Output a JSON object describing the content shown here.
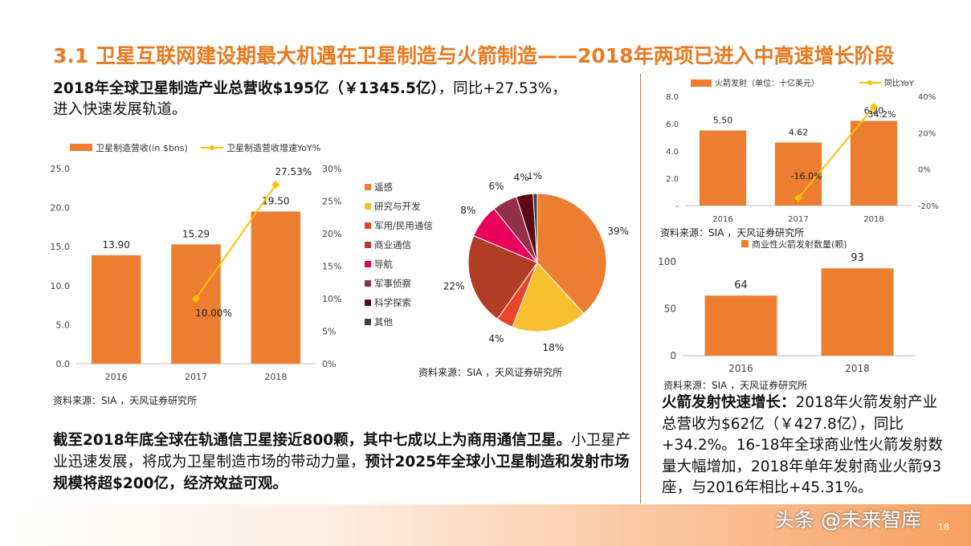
{
  "title": "3.1 卫星互联网建设期最大机遇在卫星制造与火箭制造——2018年两项已进入中高速增长阶段",
  "headline": {
    "bold": "2018年全球卫星制造产业总营收$195亿（￥1345.5亿）",
    "rest1": "，同比+27.53%，",
    "rest2": "进入快速发展轨道。"
  },
  "source_text": "资料来源：SIA ，天风证券研究所",
  "paragraph": {
    "bold1": "截至2018年底全球在轨通信卫星接近800颗，其中七成以上为商用通信卫星。",
    "normal": "小卫星产业迅速发展，将成为卫星制造市场的带动力量，",
    "bold2": "预计2025年全球小卫星制造和发射市场规模将超$200亿，经济效益可观。"
  },
  "right_text": {
    "bold": "火箭发射快速增长：",
    "normal": "2018年火箭发射产业总营收为$62亿（￥427.8亿），同比+34.2%。16-18年全球商业性火箭发射数量大幅增加，2018年单年发射商业火箭93座，与2016年相比+45.31%。"
  },
  "watermark": "头条 @未来智库",
  "page_number": "18",
  "colors": {
    "orange": "#ed7d31",
    "yellow": "#ffc000",
    "title": "#ea7a1f"
  },
  "chart_data": [
    {
      "type": "bar",
      "categories": [
        "2016",
        "2017",
        "2018"
      ],
      "series": [
        {
          "name": "卫星制造营收(in $bns)",
          "values": [
            13.9,
            15.29,
            19.5
          ],
          "labels": [
            "13.90",
            "15.29",
            "19.50"
          ],
          "axis": "left"
        },
        {
          "name": "卫星制造营收增速YoY%",
          "type": "line",
          "values": [
            null,
            10.0,
            27.53
          ],
          "labels": [
            "",
            "10.00%",
            "27.53%"
          ],
          "axis": "right"
        }
      ],
      "ylim": [
        0,
        25
      ],
      "yticks": [
        "0.0",
        "5.0",
        "10.0",
        "15.0",
        "20.0",
        "25.0"
      ],
      "y2lim": [
        0,
        30
      ],
      "y2ticks": [
        "0%",
        "5%",
        "10%",
        "15%",
        "20%",
        "25%",
        "30%"
      ],
      "legend": "top"
    },
    {
      "type": "pie",
      "labels": [
        "遥感",
        "研究与开发",
        "军用/民用通信",
        "商业通信",
        "导航",
        "军事侦察",
        "科学探索",
        "其他"
      ],
      "values": [
        39,
        18,
        4,
        22,
        8,
        6,
        4,
        1
      ],
      "value_labels": [
        "39%",
        "18%",
        "4%",
        "22%",
        "8%",
        "6%",
        "4%",
        "1%"
      ],
      "colors": [
        "#ed7d31",
        "#f8bf2f",
        "#e8462a",
        "#b13d25",
        "#e8005a",
        "#942f48",
        "#5c0a18",
        "#404040"
      ],
      "legend": "left"
    },
    {
      "type": "bar",
      "categories": [
        "2016",
        "2017",
        "2018"
      ],
      "series": [
        {
          "name": "火箭发射（单位：十亿美元）",
          "values": [
            5.5,
            4.62,
            6.2
          ],
          "labels": [
            "5.50",
            "4.62",
            "6.20"
          ],
          "axis": "left"
        },
        {
          "name": "同比YoY",
          "type": "line",
          "values": [
            null,
            -16.0,
            34.2
          ],
          "labels": [
            "",
            "-16.0%",
            "34.2%"
          ],
          "axis": "right"
        }
      ],
      "ylim": [
        0,
        8
      ],
      "yticks": [
        "-",
        "2.0",
        "4.0",
        "6.0",
        "8.0"
      ],
      "y2lim": [
        -20,
        40
      ],
      "y2ticks": [
        "-20%",
        "0%",
        "20%",
        "40%"
      ],
      "legend": "top"
    },
    {
      "type": "bar",
      "categories": [
        "2016",
        "2018"
      ],
      "series": [
        {
          "name": "商业性火箭发射数量(颗)",
          "values": [
            64,
            93
          ],
          "labels": [
            "64",
            "93"
          ]
        }
      ],
      "ylim": [
        0,
        100
      ],
      "yticks": [
        "0",
        "50",
        "100"
      ],
      "legend": "top"
    }
  ]
}
